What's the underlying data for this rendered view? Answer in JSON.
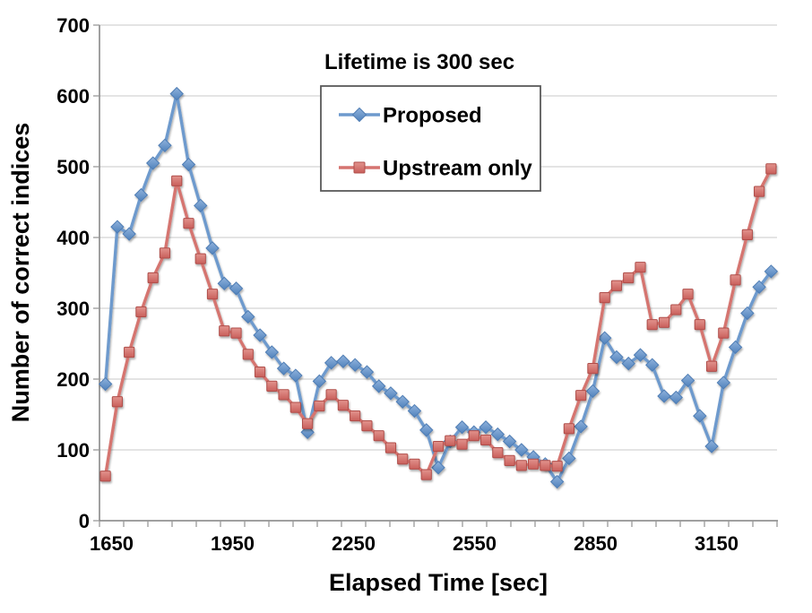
{
  "chart_data": {
    "type": "line",
    "title": "Lifetime is 300 sec",
    "xlabel": "Elapsed Time [sec]",
    "ylabel": "Number of correct indices",
    "x_start": 1650,
    "x_step": 30,
    "x_end": 3330,
    "x_tick_labels": [
      "1650",
      "1950",
      "2250",
      "2550",
      "2850",
      "3150"
    ],
    "ylim": [
      0,
      700
    ],
    "y_tick_step": 100,
    "grid": "horizontal",
    "legend_position": "top-center-boxed",
    "colors": {
      "grid": "#c8c8c8",
      "axis": "#808080",
      "tick": "#999999",
      "legend_border": "#595959",
      "background": "#ffffff"
    },
    "series": [
      {
        "name": "Proposed",
        "marker": "diamond",
        "line_color": "#6E9ACD",
        "marker_fill_top": "#8FB2DC",
        "marker_fill_bottom": "#5082BC",
        "marker_stroke": "#4F7DB4",
        "values": [
          193,
          415,
          405,
          460,
          505,
          530,
          603,
          503,
          445,
          385,
          335,
          328,
          288,
          262,
          238,
          215,
          205,
          125,
          197,
          223,
          225,
          220,
          210,
          190,
          180,
          168,
          155,
          128,
          75,
          112,
          132,
          125,
          132,
          122,
          112,
          100,
          90,
          80,
          55,
          88,
          133,
          183,
          258,
          231,
          222,
          234,
          220,
          176,
          174,
          198,
          148,
          105,
          195,
          245,
          293,
          330,
          352
        ]
      },
      {
        "name": "Upstream only",
        "marker": "square",
        "line_color": "#D57470",
        "marker_fill_top": "#E2938D",
        "marker_fill_bottom": "#C95F5B",
        "marker_stroke": "#AF4E4A",
        "values": [
          63,
          168,
          238,
          295,
          343,
          378,
          480,
          420,
          370,
          320,
          268,
          265,
          235,
          210,
          190,
          178,
          160,
          137,
          162,
          178,
          163,
          148,
          134,
          120,
          103,
          87,
          80,
          65,
          105,
          113,
          108,
          120,
          114,
          96,
          85,
          78,
          80,
          78,
          77,
          130,
          177,
          215,
          315,
          332,
          343,
          358,
          277,
          280,
          298,
          320,
          277,
          218,
          265,
          340,
          404,
          465,
          497
        ]
      }
    ]
  }
}
